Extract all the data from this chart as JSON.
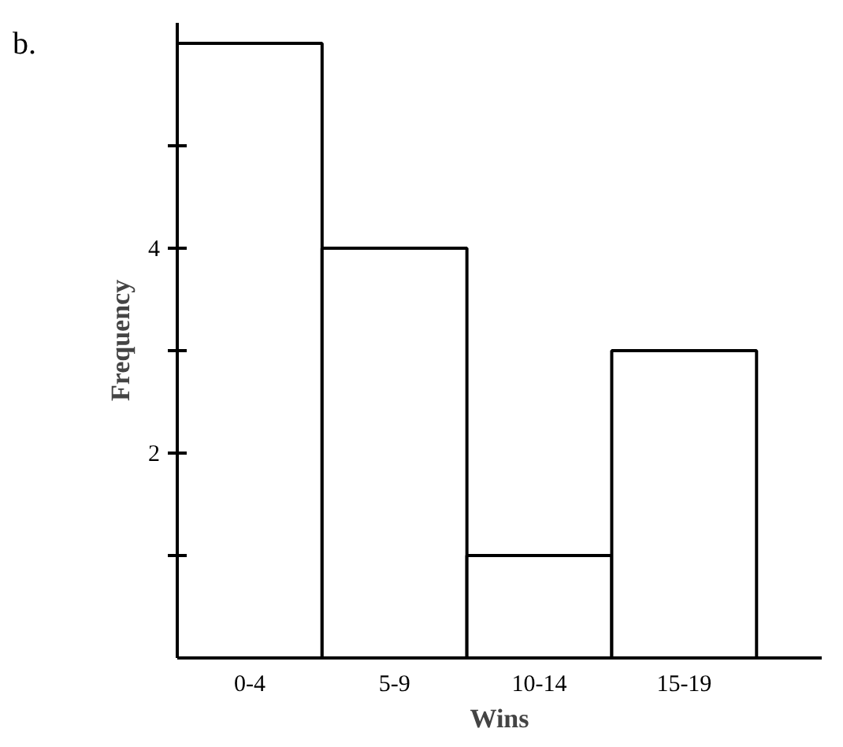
{
  "chart_data": {
    "type": "bar",
    "categories": [
      "0-4",
      "5-9",
      "10-14",
      "15-19"
    ],
    "values": [
      6,
      4,
      1,
      3
    ],
    "color": "#ffffff",
    "xlabel": "Wins",
    "ylabel": "Frequency",
    "ylim": [
      0,
      6.2
    ],
    "yticks": [
      {
        "value": 1,
        "label": null
      },
      2,
      {
        "value": 3,
        "label": null
      },
      4,
      {
        "value": 5,
        "label": null
      }
    ],
    "grid": false,
    "annotations": [
      "b."
    ]
  }
}
